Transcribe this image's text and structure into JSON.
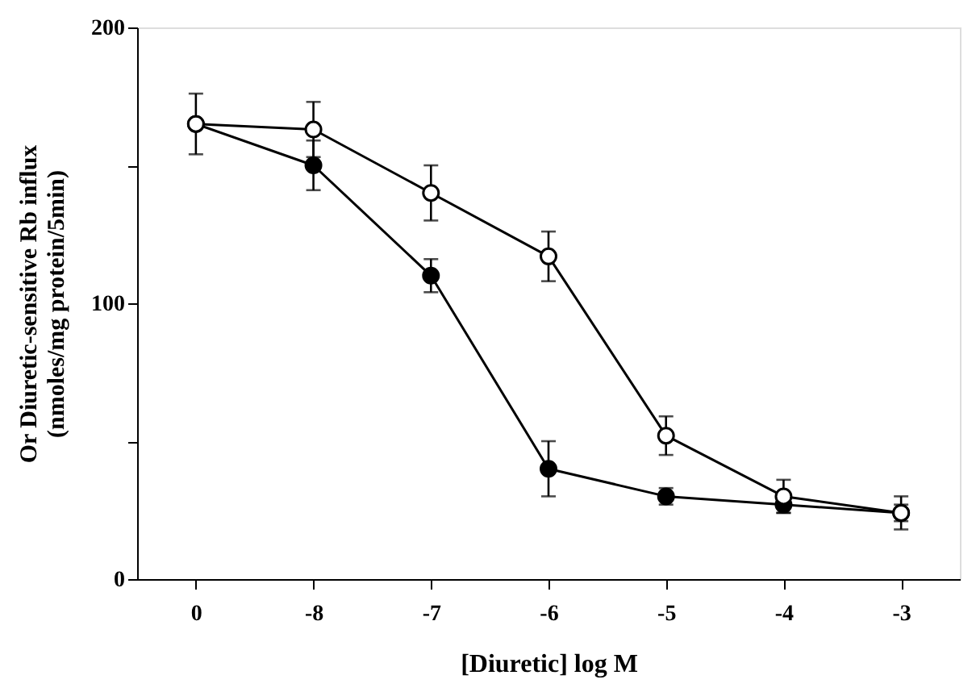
{
  "chart_data": {
    "type": "line",
    "xlabel": "[Diuretic] log M",
    "ylabel": "Or Diuretic-sensitive Rb influx\n(nmoles/mg protein/5min)",
    "categories": [
      "0",
      "-8",
      "-7",
      "-6",
      "-5",
      "-4",
      "-3"
    ],
    "series": [
      {
        "color": "#000000",
        "colors": [
          "#ffffff",
          "#ffffff",
          "#ffffff",
          "#ffffff",
          "#ffffff",
          "#ffffff",
          "#ffffff"
        ],
        "values": [
          165,
          163,
          140,
          117,
          52,
          30,
          24
        ],
        "errors": [
          11,
          10,
          10,
          9,
          7,
          6,
          6
        ]
      },
      {
        "color": "#000000",
        "values": [
          165,
          150,
          110,
          40,
          30,
          27,
          24
        ],
        "errors": [
          null,
          9,
          6,
          10,
          3,
          3,
          3
        ]
      }
    ],
    "ylim": [
      0,
      200
    ],
    "yticks": [
      0,
      {
        "value": 50,
        "label": null
      },
      100,
      {
        "value": 150,
        "label": null
      },
      200
    ],
    "marker": "circle",
    "line_style": "solid",
    "grid": false
  }
}
